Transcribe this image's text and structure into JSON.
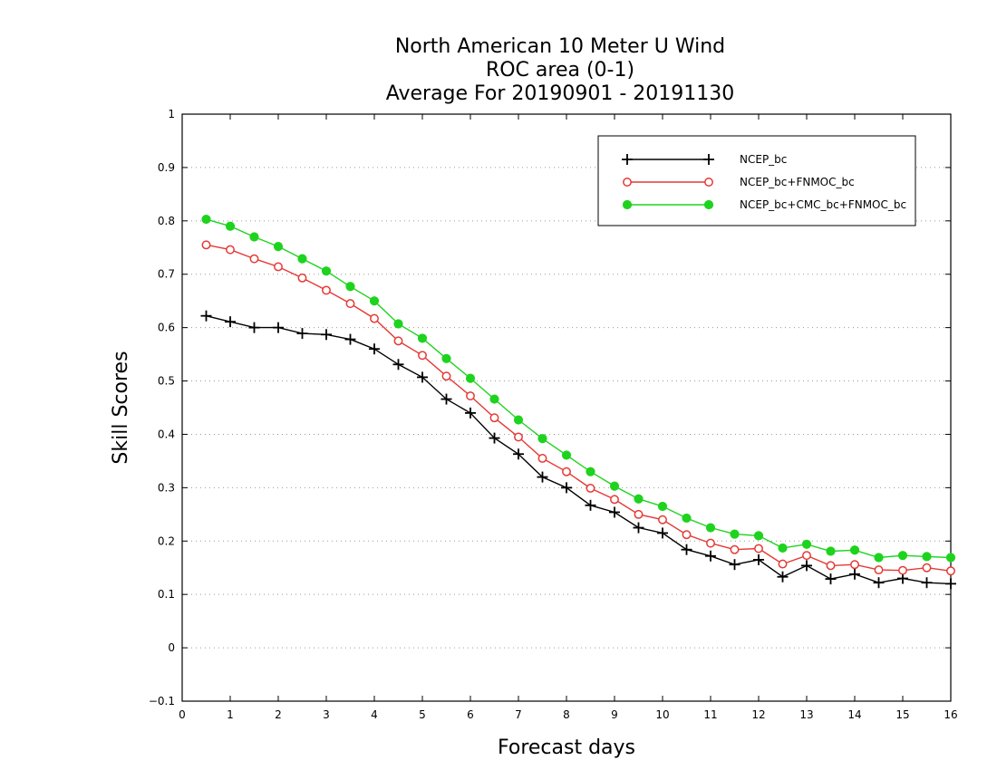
{
  "chart_data": {
    "type": "line",
    "title_lines": [
      "North American 10 Meter U Wind",
      "ROC area (0-1)",
      "Average For 20190901 - 20191130"
    ],
    "xlabel": "Forecast days",
    "ylabel": "Skill Scores",
    "xlim": [
      0,
      16
    ],
    "ylim": [
      -0.1,
      1
    ],
    "x_ticks": [
      "0",
      "1",
      "2",
      "3",
      "4",
      "5",
      "6",
      "7",
      "8",
      "9",
      "10",
      "11",
      "12",
      "13",
      "14",
      "15",
      "16"
    ],
    "y_ticks": [
      "−0.1",
      "0",
      "0.1",
      "0.2",
      "0.3",
      "0.4",
      "0.5",
      "0.6",
      "0.7",
      "0.8",
      "0.9",
      "1"
    ],
    "y_tick_values": [
      -0.1,
      0,
      0.1,
      0.2,
      0.3,
      0.4,
      0.5,
      0.6,
      0.7,
      0.8,
      0.9,
      1
    ],
    "grid": true,
    "legend_position": "top-right",
    "x": [
      0.5,
      1,
      1.5,
      2,
      2.5,
      3,
      3.5,
      4,
      4.5,
      5,
      5.5,
      6,
      6.5,
      7,
      7.5,
      8,
      8.5,
      9,
      9.5,
      10,
      10.5,
      11,
      11.5,
      12,
      12.5,
      13,
      13.5,
      14,
      14.5,
      15,
      15.5,
      16
    ],
    "series": [
      {
        "name": "NCEP_bc",
        "color": "#000000",
        "marker": "plus",
        "values": [
          0.622,
          0.611,
          0.6,
          0.6,
          0.589,
          0.587,
          0.578,
          0.56,
          0.531,
          0.507,
          0.466,
          0.44,
          0.393,
          0.363,
          0.32,
          0.3,
          0.267,
          0.254,
          0.225,
          0.215,
          0.184,
          0.172,
          0.156,
          0.165,
          0.133,
          0.154,
          0.129,
          0.138,
          0.122,
          0.13,
          0.122,
          0.12
        ]
      },
      {
        "name": "NCEP_bc+FNMOC_bc",
        "color": "#e53935",
        "marker": "open-circle",
        "values": [
          0.755,
          0.746,
          0.729,
          0.714,
          0.693,
          0.67,
          0.645,
          0.617,
          0.575,
          0.548,
          0.509,
          0.472,
          0.431,
          0.395,
          0.355,
          0.33,
          0.299,
          0.278,
          0.25,
          0.24,
          0.212,
          0.196,
          0.184,
          0.186,
          0.157,
          0.173,
          0.154,
          0.156,
          0.146,
          0.145,
          0.15,
          0.144
        ]
      },
      {
        "name": "NCEP_bc+CMC_bc+FNMOC_bc",
        "color": "#1ed31e",
        "marker": "filled-circle",
        "values": [
          0.803,
          0.79,
          0.77,
          0.752,
          0.729,
          0.706,
          0.677,
          0.65,
          0.607,
          0.58,
          0.542,
          0.505,
          0.466,
          0.427,
          0.392,
          0.361,
          0.33,
          0.303,
          0.279,
          0.265,
          0.243,
          0.225,
          0.213,
          0.21,
          0.187,
          0.194,
          0.181,
          0.183,
          0.169,
          0.173,
          0.171,
          0.169
        ]
      }
    ]
  }
}
